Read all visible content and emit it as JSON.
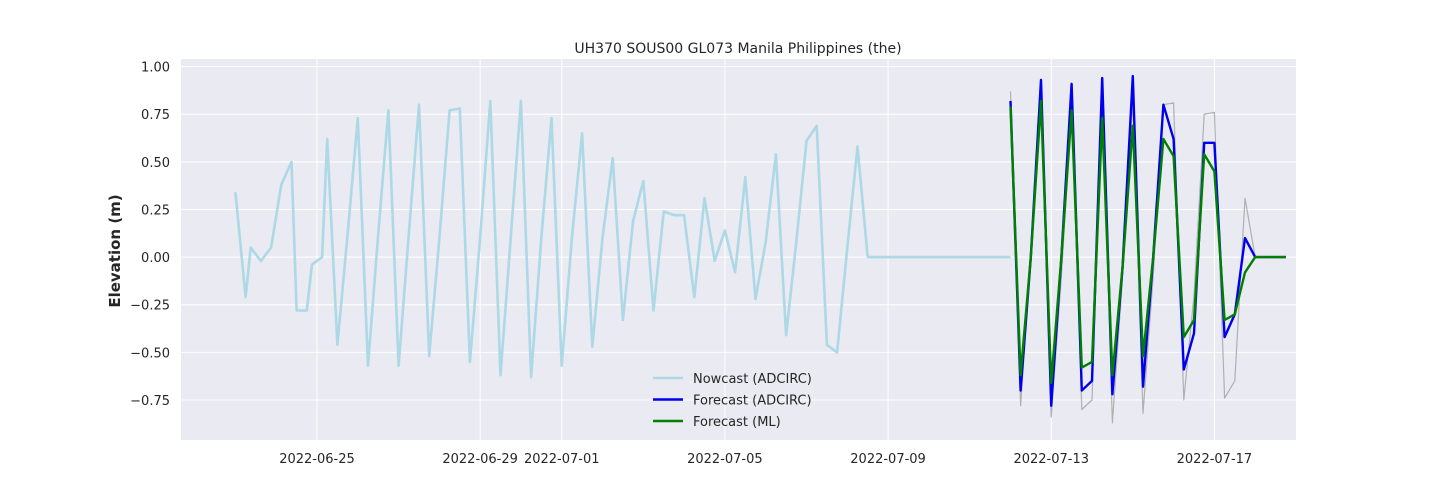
{
  "chart_data": {
    "type": "line",
    "title": "UH370 SOUS00 GL073 Manila Philippines (the)",
    "xlabel": "",
    "ylabel": "Elevation (m)",
    "ylim": [
      -0.96,
      1.04
    ],
    "xlim": [
      "2022-06-21T16:00",
      "2022-07-19T00:00"
    ],
    "x_ticks": [
      "2022-06-25",
      "2022-06-29",
      "2022-07-01",
      "2022-07-05",
      "2022-07-09",
      "2022-07-13",
      "2022-07-17"
    ],
    "y_ticks": [
      1.0,
      0.75,
      0.5,
      0.25,
      0.0,
      -0.25,
      -0.5,
      -0.75
    ],
    "y_tick_labels": [
      "1.00",
      "0.75",
      "0.50",
      "0.25",
      "0.00",
      "−0.25",
      "−0.50",
      "−0.75"
    ],
    "grid": true,
    "legend_position": "lower-center",
    "series": [
      {
        "name": "",
        "color": "#b0b0b0",
        "x": [
          "2022-07-12T00:00",
          "2022-07-12T06:00",
          "2022-07-12T12:00",
          "2022-07-12T18:00",
          "2022-07-13T00:00",
          "2022-07-13T06:00",
          "2022-07-13T12:00",
          "2022-07-13T18:00",
          "2022-07-14T00:00",
          "2022-07-14T06:00",
          "2022-07-14T12:00",
          "2022-07-14T18:00",
          "2022-07-15T00:00",
          "2022-07-15T06:00",
          "2022-07-15T12:00",
          "2022-07-15T18:00",
          "2022-07-16T00:00",
          "2022-07-16T06:00",
          "2022-07-16T12:00",
          "2022-07-16T18:00",
          "2022-07-17T00:00",
          "2022-07-17T06:00",
          "2022-07-17T12:00",
          "2022-07-17T18:00",
          "2022-07-18T00:00",
          "2022-07-18T06:00",
          "2022-07-18T12:00",
          "2022-07-18T18:00"
        ],
        "values": [
          0.87,
          -0.78,
          0.0,
          0.84,
          -0.84,
          -0.1,
          0.79,
          -0.8,
          -0.75,
          0.88,
          -0.87,
          -0.1,
          0.83,
          -0.82,
          -0.1,
          0.8,
          0.81,
          -0.75,
          -0.2,
          0.75,
          0.76,
          -0.74,
          -0.65,
          0.31,
          0.0,
          0.0,
          0.0,
          0.0
        ]
      },
      {
        "name": "Nowcast (ADCIRC)",
        "color": "#add8e6",
        "x": [
          "2022-06-23T00:00",
          "2022-06-23T06:00",
          "2022-06-23T09:00",
          "2022-06-23T15:00",
          "2022-06-23T21:00",
          "2022-06-24T03:00",
          "2022-06-24T09:00",
          "2022-06-24T12:00",
          "2022-06-24T18:00",
          "2022-06-24T21:00",
          "2022-06-25T03:00",
          "2022-06-25T06:00",
          "2022-06-25T12:00",
          "2022-06-25T18:00",
          "2022-06-26T00:00",
          "2022-06-26T06:00",
          "2022-06-26T12:00",
          "2022-06-26T18:00",
          "2022-06-27T00:00",
          "2022-06-27T06:00",
          "2022-06-27T12:00",
          "2022-06-27T18:00",
          "2022-06-28T00:00",
          "2022-06-28T06:00",
          "2022-06-28T12:00",
          "2022-06-28T18:00",
          "2022-06-29T00:00",
          "2022-06-29T06:00",
          "2022-06-29T12:00",
          "2022-06-29T18:00",
          "2022-06-30T00:00",
          "2022-06-30T06:00",
          "2022-06-30T12:00",
          "2022-06-30T18:00",
          "2022-07-01T00:00",
          "2022-07-01T06:00",
          "2022-07-01T12:00",
          "2022-07-01T18:00",
          "2022-07-02T00:00",
          "2022-07-02T06:00",
          "2022-07-02T12:00",
          "2022-07-02T18:00",
          "2022-07-03T00:00",
          "2022-07-03T06:00",
          "2022-07-03T12:00",
          "2022-07-03T18:00",
          "2022-07-04T00:00",
          "2022-07-04T06:00",
          "2022-07-04T12:00",
          "2022-07-04T18:00",
          "2022-07-05T00:00",
          "2022-07-05T06:00",
          "2022-07-05T12:00",
          "2022-07-05T18:00",
          "2022-07-06T00:00",
          "2022-07-06T06:00",
          "2022-07-06T12:00",
          "2022-07-06T18:00",
          "2022-07-07T00:00",
          "2022-07-07T06:00",
          "2022-07-07T12:00",
          "2022-07-07T18:00",
          "2022-07-08T00:00",
          "2022-07-08T06:00",
          "2022-07-08T12:00",
          "2022-07-08T18:00",
          "2022-07-09T00:00",
          "2022-07-09T06:00",
          "2022-07-09T12:00",
          "2022-07-09T18:00",
          "2022-07-10T00:00",
          "2022-07-10T06:00",
          "2022-07-10T12:00",
          "2022-07-10T18:00",
          "2022-07-11T00:00",
          "2022-07-11T06:00",
          "2022-07-11T12:00",
          "2022-07-11T18:00",
          "2022-07-12T00:00"
        ],
        "values": [
          0.34,
          -0.21,
          0.05,
          -0.02,
          0.05,
          0.38,
          0.5,
          -0.28,
          -0.28,
          -0.04,
          0.0,
          0.62,
          -0.46,
          0.12,
          0.73,
          -0.57,
          0.12,
          0.77,
          -0.57,
          0.12,
          0.8,
          -0.52,
          0.1,
          0.77,
          0.78,
          -0.55,
          0.1,
          0.82,
          -0.62,
          0.1,
          0.82,
          -0.63,
          0.1,
          0.73,
          -0.57,
          0.1,
          0.65,
          -0.47,
          0.1,
          0.52,
          -0.33,
          0.19,
          0.4,
          -0.28,
          0.24,
          0.22,
          0.22,
          -0.21,
          0.31,
          -0.02,
          0.14,
          -0.08,
          0.42,
          -0.22,
          0.08,
          0.54,
          -0.41,
          0.08,
          0.61,
          0.69,
          -0.46,
          -0.5,
          0.05,
          0.58,
          0.0,
          0.0,
          0.0,
          0.0,
          0.0,
          0.0,
          0.0,
          0.0,
          0.0,
          0.0,
          0.0,
          0.0,
          0.0,
          0.0,
          0.0
        ]
      },
      {
        "name": "Forecast (ADCIRC)",
        "color": "#0000ee",
        "x": [
          "2022-07-12T00:00",
          "2022-07-12T06:00",
          "2022-07-12T12:00",
          "2022-07-12T18:00",
          "2022-07-13T00:00",
          "2022-07-13T06:00",
          "2022-07-13T12:00",
          "2022-07-13T18:00",
          "2022-07-14T00:00",
          "2022-07-14T06:00",
          "2022-07-14T12:00",
          "2022-07-14T18:00",
          "2022-07-15T00:00",
          "2022-07-15T06:00",
          "2022-07-15T12:00",
          "2022-07-15T18:00",
          "2022-07-16T00:00",
          "2022-07-16T06:00",
          "2022-07-16T12:00",
          "2022-07-16T18:00",
          "2022-07-17T00:00",
          "2022-07-17T06:00",
          "2022-07-17T12:00",
          "2022-07-17T18:00",
          "2022-07-18T00:00",
          "2022-07-18T06:00",
          "2022-07-18T12:00",
          "2022-07-18T18:00"
        ],
        "values": [
          0.82,
          -0.7,
          0.0,
          0.93,
          -0.78,
          0.0,
          0.91,
          -0.7,
          -0.65,
          0.94,
          -0.72,
          -0.05,
          0.95,
          -0.68,
          0.0,
          0.8,
          0.62,
          -0.59,
          -0.4,
          0.6,
          0.6,
          -0.42,
          -0.3,
          0.1,
          0.0,
          0.0,
          0.0,
          0.0
        ]
      },
      {
        "name": "Forecast (ML)",
        "color": "#008000",
        "x": [
          "2022-07-12T00:00",
          "2022-07-12T06:00",
          "2022-07-12T12:00",
          "2022-07-12T18:00",
          "2022-07-13T00:00",
          "2022-07-13T06:00",
          "2022-07-13T12:00",
          "2022-07-13T18:00",
          "2022-07-14T00:00",
          "2022-07-14T06:00",
          "2022-07-14T12:00",
          "2022-07-14T18:00",
          "2022-07-15T00:00",
          "2022-07-15T06:00",
          "2022-07-15T12:00",
          "2022-07-15T18:00",
          "2022-07-16T00:00",
          "2022-07-16T06:00",
          "2022-07-16T12:00",
          "2022-07-16T18:00",
          "2022-07-17T00:00",
          "2022-07-17T06:00",
          "2022-07-17T12:00",
          "2022-07-17T18:00",
          "2022-07-18T00:00",
          "2022-07-18T06:00",
          "2022-07-18T12:00",
          "2022-07-18T18:00"
        ],
        "values": [
          0.79,
          -0.62,
          0.0,
          0.82,
          -0.66,
          0.0,
          0.77,
          -0.58,
          -0.55,
          0.73,
          -0.62,
          -0.05,
          0.69,
          -0.52,
          0.0,
          0.62,
          0.53,
          -0.42,
          -0.33,
          0.54,
          0.45,
          -0.33,
          -0.3,
          -0.08,
          0.0,
          0.0,
          0.0,
          0.0
        ]
      }
    ]
  }
}
